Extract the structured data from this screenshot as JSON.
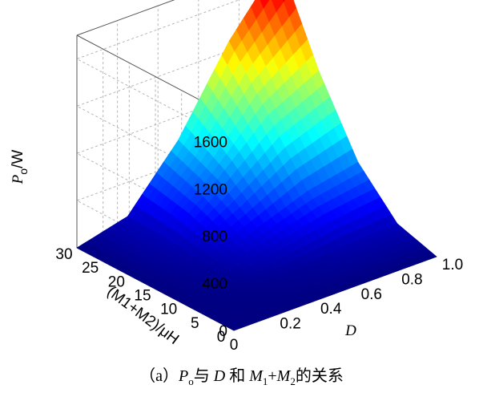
{
  "chart_data": {
    "type": "surface",
    "z_axis": {
      "label_main": "P",
      "label_sub": "o",
      "label_unit": "/W",
      "ticks": [
        "0",
        "400",
        "800",
        "1200",
        "1600"
      ],
      "tick_values": [
        0,
        400,
        800,
        1200,
        1600
      ],
      "range": [
        0,
        1800
      ]
    },
    "y_axis": {
      "label": "(M1+M2)/μH",
      "ticks": [
        "0",
        "5",
        "10",
        "15",
        "20",
        "25",
        "30"
      ],
      "tick_values": [
        0,
        5,
        10,
        15,
        20,
        25,
        30
      ],
      "range": [
        0,
        30
      ]
    },
    "x_axis": {
      "label": "D",
      "ticks": [
        "0.2",
        "0.4",
        "0.6",
        "0.8",
        "1.0"
      ],
      "tick_values": [
        0.2,
        0.4,
        0.6,
        0.8,
        1.0
      ],
      "range": [
        0,
        1.0
      ]
    },
    "surface": {
      "x": [
        0,
        0.25,
        0.5,
        0.75,
        1.0
      ],
      "y": [
        0,
        7.5,
        15,
        22.5,
        30
      ],
      "z": [
        [
          0,
          0,
          0,
          0,
          0
        ],
        [
          0,
          15,
          45,
          80,
          105
        ],
        [
          0,
          55,
          200,
          360,
          450
        ],
        [
          0,
          95,
          440,
          830,
          1050
        ],
        [
          0,
          110,
          600,
          1280,
          1800
        ]
      ],
      "colormap": "jet",
      "grid": true
    }
  },
  "caption": {
    "prefix": "（a）",
    "p_main": "P",
    "p_sub": "o",
    "yu": "与",
    "d": "D",
    "he": "和",
    "m1": "M",
    "m1_sub": "1",
    "plus": "+",
    "m2": "M",
    "m2_sub": "2",
    "relation": "的关系"
  }
}
